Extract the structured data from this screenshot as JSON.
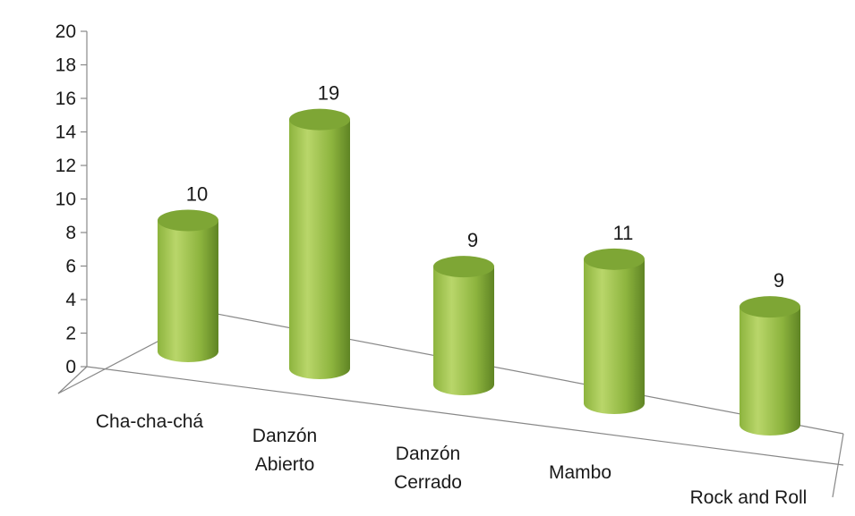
{
  "chart_data": {
    "type": "bar",
    "style": "3d-cylinder",
    "categories": [
      "Cha-cha-chá",
      "Danzón Abierto",
      "Danzón Cerrado",
      "Mambo",
      "Rock and Roll"
    ],
    "category_label_lines": [
      [
        "Cha-cha-chá"
      ],
      [
        "Danzón",
        "Abierto"
      ],
      [
        "Danzón",
        "Cerrado"
      ],
      [
        "Mambo"
      ],
      [
        "Rock and Roll"
      ]
    ],
    "values": [
      10,
      19,
      9,
      11,
      9
    ],
    "data_labels": [
      "10",
      "19",
      "9",
      "11",
      "9"
    ],
    "ylim": [
      0,
      20
    ],
    "yticks": [
      0,
      2,
      4,
      6,
      8,
      10,
      12,
      14,
      16,
      18,
      20
    ],
    "title": "",
    "xlabel": "",
    "ylabel": "",
    "grid": false,
    "legend": "none",
    "colors": {
      "bar_light": "#b9d66a",
      "bar_mid": "#8db43e",
      "bar_dark": "#5f8424",
      "bar_top": "#7ea635",
      "axis": "#888888"
    }
  }
}
